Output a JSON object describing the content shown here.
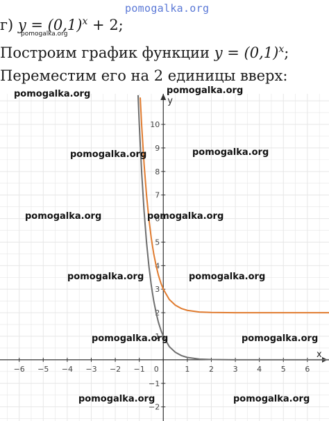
{
  "text": {
    "line1_prefix": "г) ",
    "line1_formula": "y = (0,1)",
    "line1_exp": "x",
    "line1_suffix": " + 2;",
    "line2_prefix": "Построим график функции ",
    "line2_formula": "y = (0,1)",
    "line2_exp": "x",
    "line2_suffix": ";",
    "line3": "Переместим его на 2 единицы вверх:"
  },
  "watermarks": {
    "top": "pomogalka.org",
    "small": "pomogalka.org",
    "grid": "pomogalka.org"
  },
  "colors": {
    "base_curve": "#6e6e6e",
    "shifted_curve": "#e07b2f",
    "grid": "#e6e6e6",
    "axis": "#333333",
    "top_watermark": "#5a78d6"
  },
  "chart_data": {
    "type": "line",
    "xlabel": "x",
    "ylabel": "y",
    "xlim": [
      -6.8,
      6.9
    ],
    "ylim": [
      -2.6,
      11.3
    ],
    "x_ticks": [
      -6,
      -5,
      -4,
      -3,
      -2,
      -1,
      0,
      1,
      2,
      3,
      4,
      5,
      6
    ],
    "y_ticks": [
      -2,
      -1,
      1,
      2,
      3,
      4,
      5,
      6,
      7,
      8,
      9,
      10
    ],
    "grid": true,
    "series": [
      {
        "function": "0.1^x",
        "x": [
          -1.05,
          -1,
          -0.9,
          -0.8,
          -0.7,
          -0.6,
          -0.5,
          -0.4,
          -0.3,
          -0.2,
          -0.1,
          0,
          0.25,
          0.5,
          0.75,
          1,
          1.5,
          2,
          3,
          4,
          5,
          6,
          6.9
        ],
        "y": [
          11.22,
          10,
          7.94,
          6.31,
          5.01,
          3.98,
          3.16,
          2.51,
          2.0,
          1.58,
          1.26,
          1,
          0.56,
          0.32,
          0.18,
          0.1,
          0.03,
          0.01,
          0.001,
          0,
          0,
          0,
          0
        ]
      },
      {
        "function": "0.1^x + 2",
        "x": [
          -0.96,
          -0.9,
          -0.8,
          -0.7,
          -0.6,
          -0.5,
          -0.4,
          -0.3,
          -0.2,
          -0.1,
          0,
          0.25,
          0.5,
          0.75,
          1,
          1.5,
          2,
          3,
          4,
          5,
          6,
          6.9
        ],
        "y": [
          11.12,
          9.94,
          8.31,
          7.01,
          5.98,
          5.16,
          4.51,
          4.0,
          3.58,
          3.26,
          3,
          2.56,
          2.32,
          2.18,
          2.1,
          2.03,
          2.01,
          2.001,
          2,
          2,
          2,
          2
        ]
      }
    ]
  }
}
